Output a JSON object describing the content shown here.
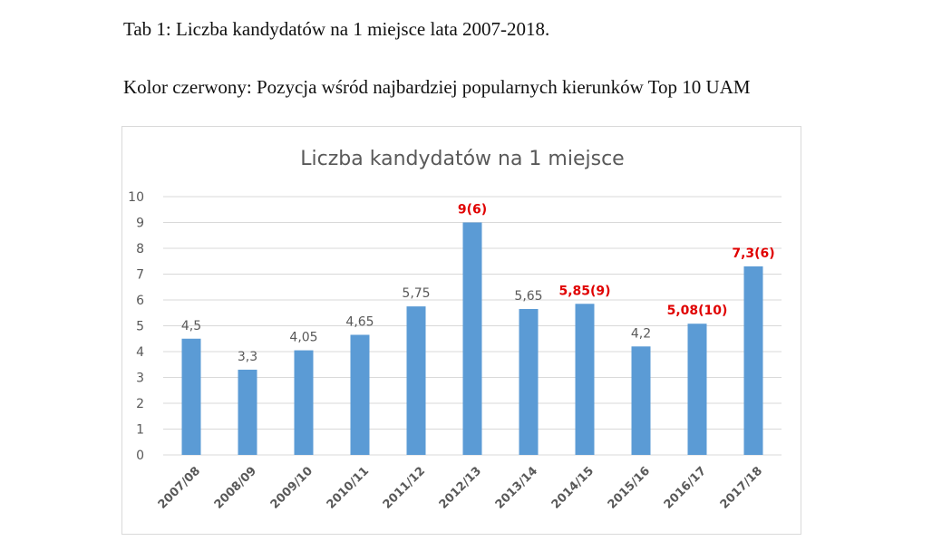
{
  "document": {
    "line1": "Tab 1: Liczba kandydatów na 1 miejsce lata 2007-2018.",
    "line2": "Kolor czerwony: Pozycja wśród najbardziej popularnych kierunków Top 10 UAM"
  },
  "colors": {
    "bar": "#5b9bd5",
    "grid": "#d9d9d9",
    "label_default": "#595959",
    "label_highlight": "#e00000"
  },
  "chart_data": {
    "type": "bar",
    "title": "Liczba kandydatów na 1 miejsce",
    "xlabel": "",
    "ylabel": "",
    "ylim": [
      0,
      10
    ],
    "yticks": [
      0,
      1,
      2,
      3,
      4,
      5,
      6,
      7,
      8,
      9,
      10
    ],
    "grid": true,
    "legend": "none",
    "categories": [
      "2007/08",
      "2008/09",
      "2009/10",
      "2010/11",
      "2011/12",
      "2012/13",
      "2013/14",
      "2014/15",
      "2015/16",
      "2016/17",
      "2017/18"
    ],
    "values": [
      4.5,
      3.3,
      4.05,
      4.65,
      5.75,
      9,
      5.65,
      5.85,
      4.2,
      5.08,
      7.3
    ],
    "data_labels": [
      "4,5",
      "3,3",
      "4,05",
      "4,65",
      "5,75",
      "9(6)",
      "5,65",
      "5,85(9)",
      "4,2",
      "5,08(10)",
      "7,3(6)"
    ],
    "highlighted": [
      false,
      false,
      false,
      false,
      false,
      true,
      false,
      true,
      false,
      true,
      true
    ]
  }
}
